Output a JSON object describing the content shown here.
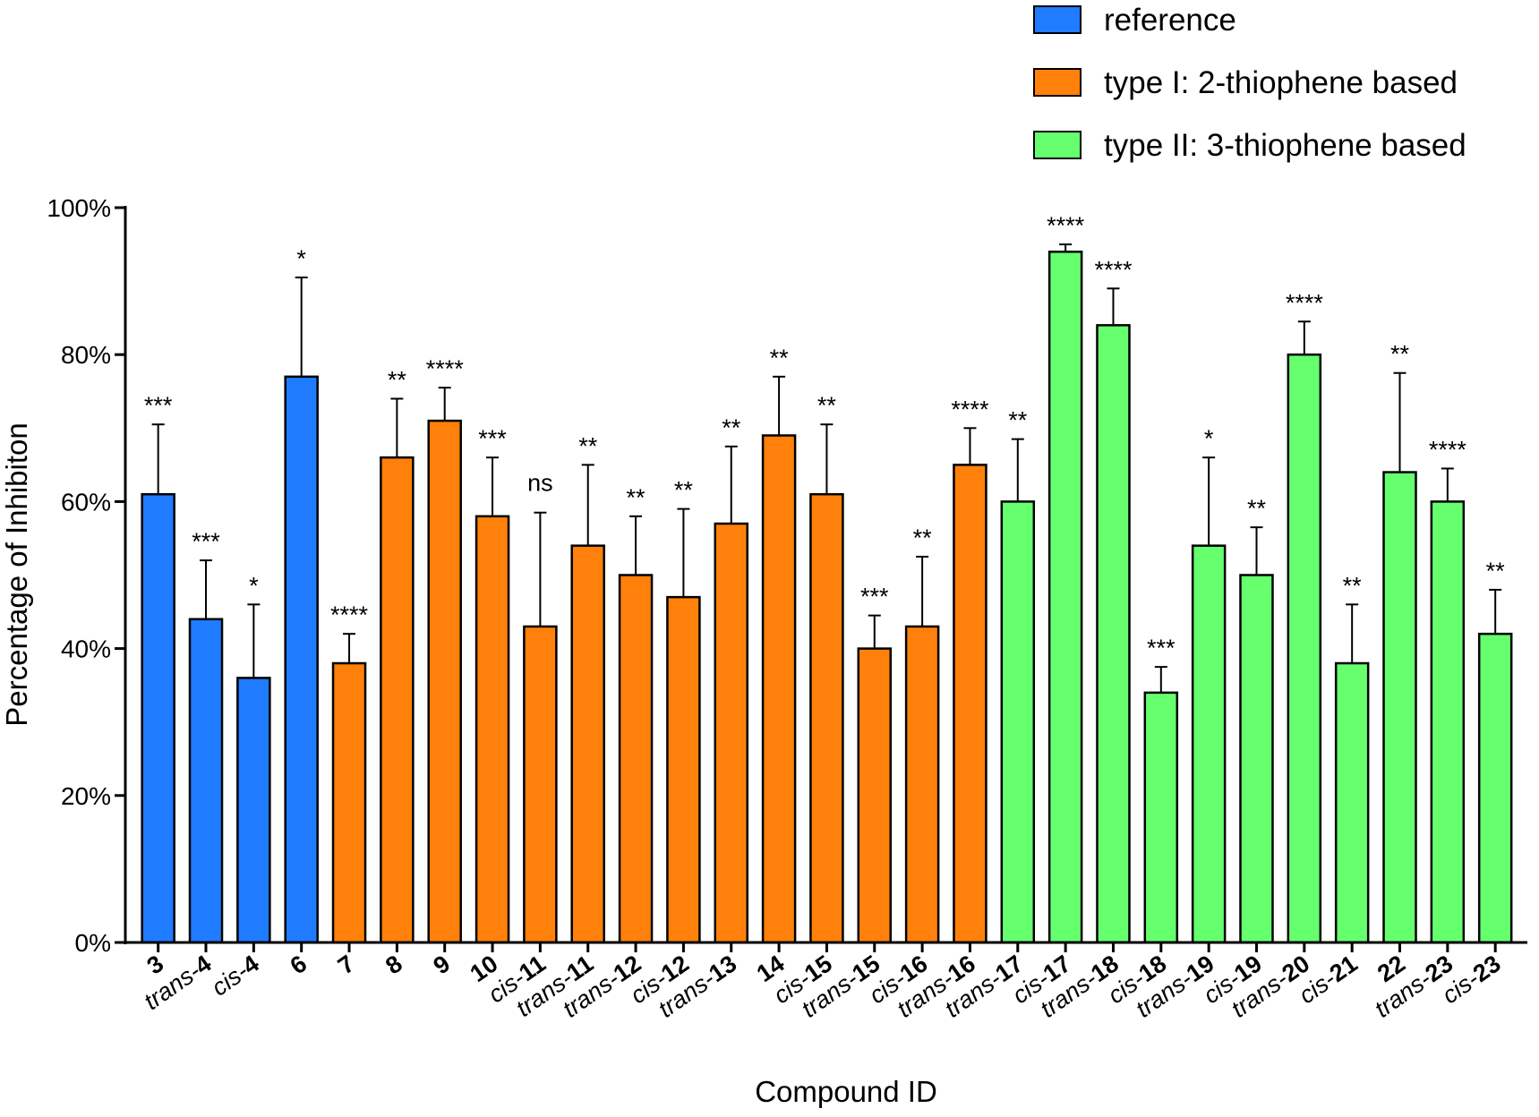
{
  "chart_data": {
    "type": "bar",
    "xlabel": "Compound ID",
    "ylabel": "Percentage of Inhibiton",
    "ylim": [
      0,
      100
    ],
    "yticks": [
      0,
      20,
      40,
      60,
      80,
      100
    ],
    "ytick_suffix": "%",
    "grid": false,
    "legend_position": "top-right",
    "groups": [
      {
        "name": "reference",
        "color": "#1f7bff"
      },
      {
        "name": "type I: 2-thiophene based",
        "color": "#ff800a"
      },
      {
        "name": "type II: 3-thiophene based",
        "color": "#66ff6e"
      }
    ],
    "categories": [
      {
        "prefix": "",
        "number": "3",
        "group": 0
      },
      {
        "prefix": "trans-",
        "number": "4",
        "group": 0
      },
      {
        "prefix": "cis-",
        "number": "4",
        "group": 0
      },
      {
        "prefix": "",
        "number": "6",
        "group": 0
      },
      {
        "prefix": "",
        "number": "7",
        "group": 1
      },
      {
        "prefix": "",
        "number": "8",
        "group": 1
      },
      {
        "prefix": "",
        "number": "9",
        "group": 1
      },
      {
        "prefix": "",
        "number": "10",
        "group": 1
      },
      {
        "prefix": "cis-",
        "number": "11",
        "group": 1
      },
      {
        "prefix": "trans-",
        "number": "11",
        "group": 1
      },
      {
        "prefix": "trans-",
        "number": "12",
        "group": 1
      },
      {
        "prefix": "cis-",
        "number": "12",
        "group": 1
      },
      {
        "prefix": "trans-",
        "number": "13",
        "group": 1
      },
      {
        "prefix": "",
        "number": "14",
        "group": 1
      },
      {
        "prefix": "cis-",
        "number": "15",
        "group": 1
      },
      {
        "prefix": "trans-",
        "number": "15",
        "group": 1
      },
      {
        "prefix": "cis-",
        "number": "16",
        "group": 1
      },
      {
        "prefix": "trans-",
        "number": "16",
        "group": 1
      },
      {
        "prefix": "trans-",
        "number": "17",
        "group": 2
      },
      {
        "prefix": "cis-",
        "number": "17",
        "group": 2
      },
      {
        "prefix": "trans-",
        "number": "18",
        "group": 2
      },
      {
        "prefix": "cis-",
        "number": "18",
        "group": 2
      },
      {
        "prefix": "trans-",
        "number": "19",
        "group": 2
      },
      {
        "prefix": "cis-",
        "number": "19",
        "group": 2
      },
      {
        "prefix": "trans-",
        "number": "20",
        "group": 2
      },
      {
        "prefix": "cis-",
        "number": "21",
        "group": 2
      },
      {
        "prefix": "",
        "number": "22",
        "group": 2
      },
      {
        "prefix": "trans-",
        "number": "23",
        "group": 2
      },
      {
        "prefix": "cis-",
        "number": "23",
        "group": 2
      }
    ],
    "values": [
      61,
      44,
      36,
      77,
      38,
      66,
      71,
      58,
      43,
      54,
      50,
      47,
      57,
      69,
      61,
      40,
      43,
      65,
      60,
      94,
      84,
      34,
      54,
      50,
      80,
      38,
      64,
      60,
      42
    ],
    "error_upper": [
      70.5,
      52,
      46,
      90.5,
      42,
      74,
      75.5,
      66,
      58.5,
      65,
      58,
      59,
      67.5,
      77,
      70.5,
      44.5,
      52.5,
      70,
      68.5,
      95,
      89,
      37.5,
      66,
      56.5,
      84.5,
      46,
      77.5,
      64.5,
      48
    ],
    "significance": [
      "***",
      "***",
      "*",
      "*",
      "****",
      "**",
      "****",
      "***",
      "ns",
      "**",
      "**",
      "**",
      "**",
      "**",
      "**",
      "***",
      "**",
      "****",
      "**",
      "****",
      "****",
      "***",
      "*",
      "**",
      "****",
      "**",
      "**",
      "****",
      "**"
    ]
  }
}
